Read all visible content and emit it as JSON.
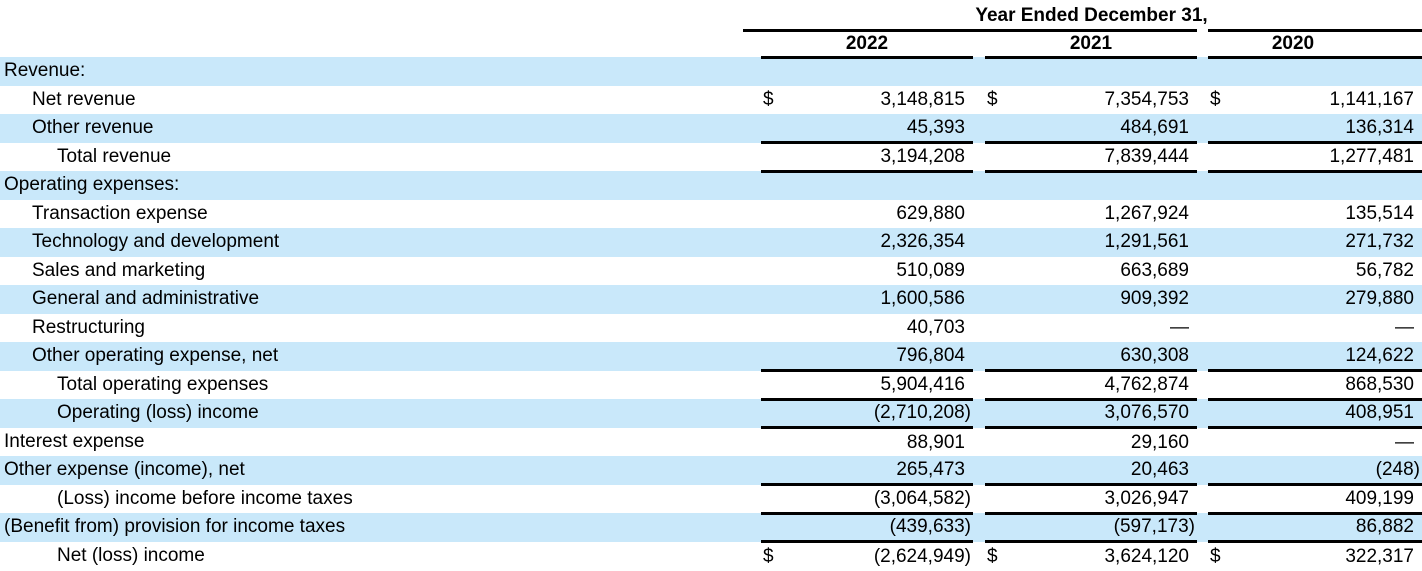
{
  "table": {
    "title": "Year Ended December 31,",
    "columns": [
      "2022",
      "2021",
      "2020"
    ],
    "dollar_sign": "$",
    "nil_symbol": "—",
    "colors": {
      "row_shade": "#c9e8fa",
      "rule_line": "#000000",
      "background": "#ffffff",
      "text": "#000000"
    },
    "rows": [
      {
        "label": "Revenue:",
        "indent": 0,
        "shaded": true,
        "dollar": false,
        "values": [
          "",
          "",
          ""
        ]
      },
      {
        "label": "Net revenue",
        "indent": 1,
        "shaded": false,
        "dollar": true,
        "values": [
          "3,148,815",
          "7,354,753",
          "1,141,167"
        ]
      },
      {
        "label": "Other revenue",
        "indent": 1,
        "shaded": true,
        "dollar": false,
        "values": [
          "45,393",
          "484,691",
          "136,314"
        ]
      },
      {
        "label": "Total revenue",
        "indent": 2,
        "shaded": false,
        "dollar": false,
        "values": [
          "3,194,208",
          "7,839,444",
          "1,277,481"
        ],
        "border_top": true,
        "border_bottom": true
      },
      {
        "label": "Operating expenses:",
        "indent": 0,
        "shaded": true,
        "dollar": false,
        "values": [
          "",
          "",
          ""
        ]
      },
      {
        "label": "Transaction expense",
        "indent": 1,
        "shaded": false,
        "dollar": false,
        "values": [
          "629,880",
          "1,267,924",
          "135,514"
        ]
      },
      {
        "label": "Technology and development",
        "indent": 1,
        "shaded": true,
        "dollar": false,
        "values": [
          "2,326,354",
          "1,291,561",
          "271,732"
        ]
      },
      {
        "label": "Sales and marketing",
        "indent": 1,
        "shaded": false,
        "dollar": false,
        "values": [
          "510,089",
          "663,689",
          "56,782"
        ]
      },
      {
        "label": "General and administrative",
        "indent": 1,
        "shaded": true,
        "dollar": false,
        "values": [
          "1,600,586",
          "909,392",
          "279,880"
        ]
      },
      {
        "label": "Restructuring",
        "indent": 1,
        "shaded": false,
        "dollar": false,
        "values": [
          "40,703",
          "—",
          "—"
        ]
      },
      {
        "label": "Other operating expense, net",
        "indent": 1,
        "shaded": true,
        "dollar": false,
        "values": [
          "796,804",
          "630,308",
          "124,622"
        ]
      },
      {
        "label": "Total operating expenses",
        "indent": 2,
        "shaded": false,
        "dollar": false,
        "values": [
          "5,904,416",
          "4,762,874",
          "868,530"
        ],
        "border_top": true,
        "border_bottom": true
      },
      {
        "label": "Operating (loss) income",
        "indent": 2,
        "shaded": true,
        "dollar": false,
        "values": [
          "(2,710,208)",
          "3,076,570",
          "408,951"
        ],
        "border_bottom": true
      },
      {
        "label": "Interest expense",
        "indent": 0,
        "shaded": false,
        "dollar": false,
        "values": [
          "88,901",
          "29,160",
          "—"
        ]
      },
      {
        "label": "Other expense (income), net",
        "indent": 0,
        "shaded": true,
        "dollar": false,
        "values": [
          "265,473",
          "20,463",
          "(248)"
        ]
      },
      {
        "label": "(Loss) income before income taxes",
        "indent": 2,
        "shaded": false,
        "dollar": false,
        "values": [
          "(3,064,582)",
          "3,026,947",
          "409,199"
        ],
        "border_top": true,
        "border_bottom": true
      },
      {
        "label": "(Benefit from) provision for income taxes",
        "indent": 0,
        "shaded": true,
        "dollar": false,
        "values": [
          "(439,633)",
          "(597,173)",
          "86,882"
        ],
        "border_bottom": true
      },
      {
        "label": "Net (loss) income",
        "indent": 2,
        "shaded": false,
        "dollar": true,
        "values": [
          "(2,624,949)",
          "3,624,120",
          "322,317"
        ]
      }
    ]
  }
}
